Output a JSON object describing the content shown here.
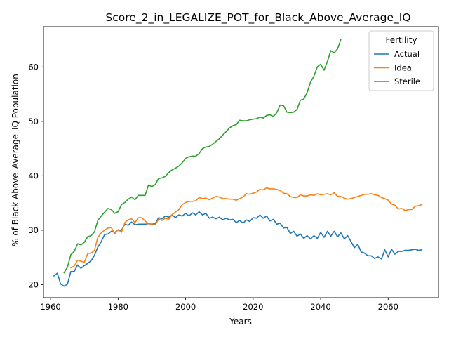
{
  "chart_data": {
    "type": "line",
    "title": "Score_2_in_LEGALIZE_POT_for_Black_Above_Average_IQ",
    "xlabel": "Years",
    "ylabel": "% of Black Above_Average_IQ Population",
    "xlim": [
      1957.9,
      2074.9
    ],
    "ylim": [
      17.6,
      67.4
    ],
    "xticks": [
      1960,
      1980,
      2000,
      2020,
      2040,
      2060
    ],
    "yticks": [
      20,
      30,
      40,
      50,
      60
    ],
    "grid": false,
    "legend": {
      "title": "Fertility",
      "position": "top-right"
    },
    "series": [
      {
        "name": "Actual",
        "color": "#1f77b4",
        "points": [
          [
            1961,
            21.6
          ],
          [
            1962,
            22.1
          ],
          [
            1963,
            20.1
          ],
          [
            1964,
            19.7
          ],
          [
            1965,
            20.1
          ],
          [
            1966,
            22.4
          ],
          [
            1967,
            22.4
          ],
          [
            1968,
            23.6
          ],
          [
            1969,
            23.0
          ],
          [
            1970,
            23.5
          ],
          [
            1971,
            23.9
          ],
          [
            1972,
            24.4
          ],
          [
            1973,
            25.4
          ],
          [
            1974,
            26.9
          ],
          [
            1975,
            27.9
          ],
          [
            1976,
            29.2
          ],
          [
            1977,
            29.3
          ],
          [
            1978,
            29.8
          ],
          [
            1979,
            29.6
          ],
          [
            1980,
            30.0
          ],
          [
            1981,
            30.0
          ],
          [
            1982,
            31.1
          ],
          [
            1983,
            30.9
          ],
          [
            1984,
            31.5
          ],
          [
            1985,
            31.0
          ],
          [
            1986,
            31.1
          ],
          [
            1987,
            31.1
          ],
          [
            1988,
            31.1
          ],
          [
            1989,
            31.2
          ],
          [
            1990,
            31.1
          ],
          [
            1991,
            31.2
          ],
          [
            1992,
            32.3
          ],
          [
            1993,
            32.1
          ],
          [
            1994,
            32.6
          ],
          [
            1995,
            32.4
          ],
          [
            1996,
            32.8
          ],
          [
            1997,
            32.3
          ],
          [
            1998,
            32.8
          ],
          [
            1999,
            32.6
          ],
          [
            2000,
            33.1
          ],
          [
            2001,
            32.6
          ],
          [
            2002,
            33.2
          ],
          [
            2003,
            32.8
          ],
          [
            2004,
            33.4
          ],
          [
            2005,
            32.8
          ],
          [
            2006,
            33.1
          ],
          [
            2007,
            32.2
          ],
          [
            2008,
            32.4
          ],
          [
            2009,
            32.1
          ],
          [
            2010,
            32.4
          ],
          [
            2011,
            31.9
          ],
          [
            2012,
            32.2
          ],
          [
            2013,
            31.9
          ],
          [
            2014,
            32.0
          ],
          [
            2015,
            31.4
          ],
          [
            2016,
            31.8
          ],
          [
            2017,
            31.3
          ],
          [
            2018,
            31.9
          ],
          [
            2019,
            31.6
          ],
          [
            2020,
            32.3
          ],
          [
            2021,
            32.2
          ],
          [
            2022,
            32.8
          ],
          [
            2023,
            32.2
          ],
          [
            2024,
            32.6
          ],
          [
            2025,
            31.7
          ],
          [
            2026,
            32.0
          ],
          [
            2027,
            31.1
          ],
          [
            2028,
            31.3
          ],
          [
            2029,
            30.4
          ],
          [
            2030,
            30.5
          ],
          [
            2031,
            29.4
          ],
          [
            2032,
            29.8
          ],
          [
            2033,
            28.9
          ],
          [
            2034,
            29.3
          ],
          [
            2035,
            28.5
          ],
          [
            2036,
            29.0
          ],
          [
            2037,
            28.4
          ],
          [
            2038,
            29.0
          ],
          [
            2039,
            28.5
          ],
          [
            2040,
            29.6
          ],
          [
            2041,
            28.7
          ],
          [
            2042,
            29.8
          ],
          [
            2043,
            28.9
          ],
          [
            2044,
            29.8
          ],
          [
            2045,
            28.8
          ],
          [
            2046,
            29.5
          ],
          [
            2047,
            28.4
          ],
          [
            2048,
            29.0
          ],
          [
            2049,
            27.9
          ],
          [
            2050,
            26.8
          ],
          [
            2051,
            27.4
          ],
          [
            2052,
            26.0
          ],
          [
            2053,
            25.8
          ],
          [
            2054,
            25.3
          ],
          [
            2055,
            25.3
          ],
          [
            2056,
            24.8
          ],
          [
            2057,
            25.1
          ],
          [
            2058,
            24.7
          ],
          [
            2059,
            26.4
          ],
          [
            2060,
            25.1
          ],
          [
            2061,
            26.5
          ],
          [
            2062,
            25.6
          ],
          [
            2063,
            26.1
          ],
          [
            2064,
            26.1
          ],
          [
            2065,
            26.3
          ],
          [
            2066,
            26.3
          ],
          [
            2067,
            26.4
          ],
          [
            2068,
            26.5
          ],
          [
            2069,
            26.3
          ],
          [
            2070,
            26.4
          ]
        ]
      },
      {
        "name": "Ideal",
        "color": "#ff7f0e",
        "points": [
          [
            1966,
            23.1
          ],
          [
            1967,
            23.4
          ],
          [
            1968,
            24.5
          ],
          [
            1969,
            24.3
          ],
          [
            1970,
            24.1
          ],
          [
            1971,
            25.7
          ],
          [
            1972,
            25.8
          ],
          [
            1973,
            26.3
          ],
          [
            1974,
            28.7
          ],
          [
            1975,
            29.5
          ],
          [
            1976,
            30.0
          ],
          [
            1977,
            30.4
          ],
          [
            1978,
            30.5
          ],
          [
            1979,
            29.3
          ],
          [
            1980,
            30.1
          ],
          [
            1981,
            29.6
          ],
          [
            1982,
            31.4
          ],
          [
            1983,
            31.9
          ],
          [
            1984,
            32.1
          ],
          [
            1985,
            31.4
          ],
          [
            1986,
            32.3
          ],
          [
            1987,
            32.3
          ],
          [
            1988,
            31.7
          ],
          [
            1989,
            31.2
          ],
          [
            1990,
            31.0
          ],
          [
            1991,
            31.0
          ],
          [
            1992,
            32.0
          ],
          [
            1993,
            31.8
          ],
          [
            1994,
            32.2
          ],
          [
            1995,
            32.0
          ],
          [
            1996,
            32.9
          ],
          [
            1997,
            33.3
          ],
          [
            1998,
            33.8
          ],
          [
            1999,
            34.7
          ],
          [
            2000,
            35.1
          ],
          [
            2001,
            35.3
          ],
          [
            2002,
            35.3
          ],
          [
            2003,
            35.4
          ],
          [
            2004,
            36.0
          ],
          [
            2005,
            35.8
          ],
          [
            2006,
            35.9
          ],
          [
            2007,
            35.6
          ],
          [
            2008,
            35.9
          ],
          [
            2009,
            36.2
          ],
          [
            2010,
            36.1
          ],
          [
            2011,
            35.8
          ],
          [
            2012,
            35.8
          ],
          [
            2013,
            35.7
          ],
          [
            2014,
            35.7
          ],
          [
            2015,
            35.5
          ],
          [
            2016,
            35.8
          ],
          [
            2017,
            36.1
          ],
          [
            2018,
            36.7
          ],
          [
            2019,
            36.6
          ],
          [
            2020,
            36.8
          ],
          [
            2021,
            37.0
          ],
          [
            2022,
            37.5
          ],
          [
            2023,
            37.4
          ],
          [
            2024,
            37.8
          ],
          [
            2025,
            37.6
          ],
          [
            2026,
            37.6
          ],
          [
            2027,
            37.5
          ],
          [
            2028,
            37.3
          ],
          [
            2029,
            36.8
          ],
          [
            2030,
            36.7
          ],
          [
            2031,
            36.2
          ],
          [
            2032,
            36.0
          ],
          [
            2033,
            36.0
          ],
          [
            2034,
            36.5
          ],
          [
            2035,
            36.3
          ],
          [
            2036,
            36.3
          ],
          [
            2037,
            36.5
          ],
          [
            2038,
            36.4
          ],
          [
            2039,
            36.7
          ],
          [
            2040,
            36.5
          ],
          [
            2041,
            36.6
          ],
          [
            2042,
            36.7
          ],
          [
            2043,
            36.5
          ],
          [
            2044,
            36.9
          ],
          [
            2045,
            36.2
          ],
          [
            2046,
            36.2
          ],
          [
            2047,
            35.9
          ],
          [
            2048,
            35.7
          ],
          [
            2049,
            35.8
          ],
          [
            2050,
            36.0
          ],
          [
            2051,
            36.2
          ],
          [
            2052,
            36.4
          ],
          [
            2053,
            36.6
          ],
          [
            2054,
            36.6
          ],
          [
            2055,
            36.7
          ],
          [
            2056,
            36.5
          ],
          [
            2057,
            36.4
          ],
          [
            2058,
            36.0
          ],
          [
            2059,
            35.8
          ],
          [
            2060,
            35.5
          ],
          [
            2061,
            34.8
          ],
          [
            2062,
            34.6
          ],
          [
            2063,
            33.9
          ],
          [
            2064,
            34.0
          ],
          [
            2065,
            33.6
          ],
          [
            2066,
            33.8
          ],
          [
            2067,
            33.8
          ],
          [
            2068,
            34.4
          ],
          [
            2069,
            34.5
          ],
          [
            2070,
            34.7
          ]
        ]
      },
      {
        "name": "Sterile",
        "color": "#2ca02c",
        "points": [
          [
            1964,
            22.2
          ],
          [
            1965,
            23.2
          ],
          [
            1966,
            25.5
          ],
          [
            1967,
            26.1
          ],
          [
            1968,
            27.5
          ],
          [
            1969,
            27.3
          ],
          [
            1970,
            27.8
          ],
          [
            1971,
            28.8
          ],
          [
            1972,
            29.0
          ],
          [
            1973,
            29.7
          ],
          [
            1974,
            31.8
          ],
          [
            1975,
            32.6
          ],
          [
            1976,
            33.3
          ],
          [
            1977,
            34.0
          ],
          [
            1978,
            33.8
          ],
          [
            1979,
            33.1
          ],
          [
            1980,
            33.4
          ],
          [
            1981,
            34.7
          ],
          [
            1982,
            35.1
          ],
          [
            1983,
            35.7
          ],
          [
            1984,
            36.1
          ],
          [
            1985,
            35.6
          ],
          [
            1986,
            36.4
          ],
          [
            1987,
            36.4
          ],
          [
            1988,
            36.4
          ],
          [
            1989,
            38.3
          ],
          [
            1990,
            38.0
          ],
          [
            1991,
            38.4
          ],
          [
            1992,
            39.5
          ],
          [
            1993,
            39.6
          ],
          [
            1994,
            39.9
          ],
          [
            1995,
            40.6
          ],
          [
            1996,
            41.1
          ],
          [
            1997,
            41.4
          ],
          [
            1998,
            41.8
          ],
          [
            1999,
            42.4
          ],
          [
            2000,
            43.2
          ],
          [
            2001,
            43.5
          ],
          [
            2002,
            43.6
          ],
          [
            2003,
            43.6
          ],
          [
            2004,
            44.1
          ],
          [
            2005,
            45.0
          ],
          [
            2006,
            45.3
          ],
          [
            2007,
            45.4
          ],
          [
            2008,
            45.8
          ],
          [
            2009,
            46.3
          ],
          [
            2010,
            46.8
          ],
          [
            2011,
            47.5
          ],
          [
            2012,
            48.1
          ],
          [
            2013,
            48.8
          ],
          [
            2014,
            49.2
          ],
          [
            2015,
            49.4
          ],
          [
            2016,
            50.2
          ],
          [
            2017,
            50.1
          ],
          [
            2018,
            50.1
          ],
          [
            2019,
            50.3
          ],
          [
            2020,
            50.4
          ],
          [
            2021,
            50.5
          ],
          [
            2022,
            50.8
          ],
          [
            2023,
            50.6
          ],
          [
            2024,
            51.1
          ],
          [
            2025,
            51.2
          ],
          [
            2026,
            50.9
          ],
          [
            2027,
            51.6
          ],
          [
            2028,
            53.0
          ],
          [
            2029,
            52.9
          ],
          [
            2030,
            51.7
          ],
          [
            2031,
            51.6
          ],
          [
            2032,
            51.7
          ],
          [
            2033,
            52.2
          ],
          [
            2034,
            53.9
          ],
          [
            2035,
            54.1
          ],
          [
            2036,
            55.3
          ],
          [
            2037,
            57.2
          ],
          [
            2038,
            58.3
          ],
          [
            2039,
            60.0
          ],
          [
            2040,
            60.5
          ],
          [
            2041,
            59.4
          ],
          [
            2042,
            61.0
          ],
          [
            2043,
            63.0
          ],
          [
            2044,
            62.6
          ],
          [
            2045,
            63.3
          ],
          [
            2046,
            65.1
          ]
        ]
      }
    ]
  }
}
